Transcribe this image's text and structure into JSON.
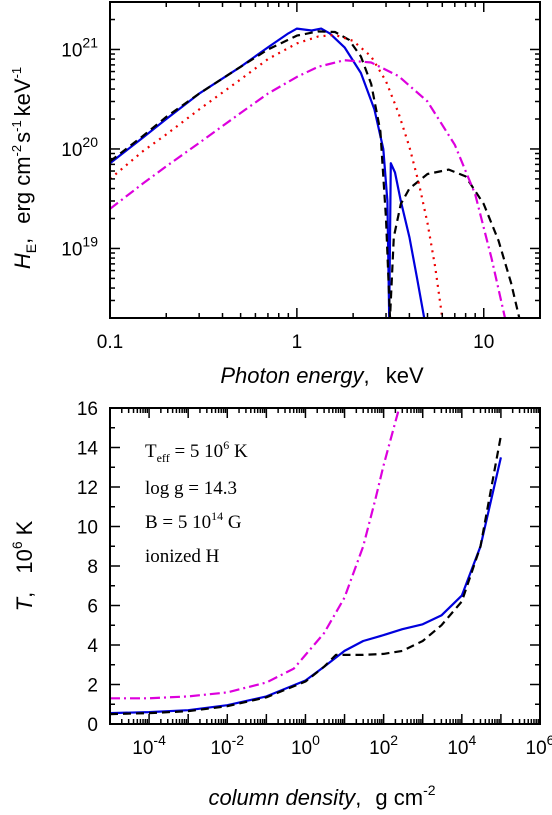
{
  "chart_data": [
    {
      "type": "line",
      "x_scale": "log",
      "y_scale": "log",
      "xlim": [
        0.1,
        20
      ],
      "ylim": [
        2e+18,
        3e+21
      ],
      "x_tick_values": [
        0.1,
        1,
        10
      ],
      "x_tick_labels": [
        "0.1",
        "1",
        "10"
      ],
      "y_tick_values": [
        1e+19,
        1e+20,
        1e+21
      ],
      "y_tick_labels": [
        {
          "base": "10",
          "exp": "19"
        },
        {
          "base": "10",
          "exp": "20"
        },
        {
          "base": "10",
          "exp": "21"
        }
      ],
      "xlabel": {
        "italic": "Photon energy",
        "unit": "keV"
      },
      "ylabel": {
        "italic": "H",
        "sub": "E",
        "unit": "erg cm",
        "exp1": "-2",
        "s": "s",
        "exp2": "-1",
        "kev": "keV",
        "exp3": "-1"
      },
      "series": [
        {
          "color": "#0000dd",
          "dash": "solid",
          "points": [
            [
              0.1,
              7.2e+19
            ],
            [
              0.15,
              1.3e+20
            ],
            [
              0.2,
              2e+20
            ],
            [
              0.3,
              3.6e+20
            ],
            [
              0.5,
              6.7e+20
            ],
            [
              0.7,
              1.05e+21
            ],
            [
              0.9,
              1.45e+21
            ],
            [
              1.0,
              1.62e+21
            ],
            [
              1.2,
              1.55e+21
            ],
            [
              1.35,
              1.62e+21
            ],
            [
              1.5,
              1.45e+21
            ],
            [
              1.8,
              1.05e+21
            ],
            [
              2.2,
              5.8e+20
            ],
            [
              2.6,
              2.5e+20
            ],
            [
              2.9,
              1e+20
            ],
            [
              3.05,
              3e+19
            ],
            [
              3.12,
              2e+18
            ],
            [
              3.18,
              7.2e+19
            ],
            [
              3.35,
              5.8e+19
            ],
            [
              3.6,
              3e+19
            ],
            [
              4.0,
              1.3e+19
            ],
            [
              4.4,
              5e+18
            ],
            [
              4.8,
              2e+18
            ]
          ]
        },
        {
          "color": "#000000",
          "dash": "dashed",
          "points": [
            [
              0.1,
              7.5e+19
            ],
            [
              0.15,
              1.35e+20
            ],
            [
              0.2,
              2.1e+20
            ],
            [
              0.3,
              3.6e+20
            ],
            [
              0.5,
              6.7e+20
            ],
            [
              0.7,
              1e+21
            ],
            [
              1.0,
              1.38e+21
            ],
            [
              1.3,
              1.52e+21
            ],
            [
              1.6,
              1.5e+21
            ],
            [
              1.9,
              1.25e+21
            ],
            [
              2.2,
              8.5e+20
            ],
            [
              2.5,
              4.5e+20
            ],
            [
              2.8,
              1.5e+20
            ],
            [
              3.0,
              2e+19
            ],
            [
              3.15,
              2e+18
            ],
            [
              3.3,
              1.3e+19
            ],
            [
              3.6,
              2.8e+19
            ],
            [
              4.0,
              4e+19
            ],
            [
              5.0,
              5.6e+19
            ],
            [
              6.5,
              6.2e+19
            ],
            [
              8.0,
              5.3e+19
            ],
            [
              10.0,
              2.8e+19
            ],
            [
              12.0,
              1.2e+19
            ],
            [
              14.0,
              4.5e+18
            ],
            [
              15.5,
              2e+18
            ]
          ]
        },
        {
          "color": "#ee0000",
          "dash": "dotted",
          "points": [
            [
              0.1,
              5e+19
            ],
            [
              0.15,
              9.5e+19
            ],
            [
              0.2,
              1.4e+20
            ],
            [
              0.3,
              2.5e+20
            ],
            [
              0.5,
              5e+20
            ],
            [
              0.7,
              8e+20
            ],
            [
              1.0,
              1.15e+21
            ],
            [
              1.3,
              1.35e+21
            ],
            [
              1.6,
              1.4e+21
            ],
            [
              2.0,
              1.22e+21
            ],
            [
              2.5,
              8.5e+20
            ],
            [
              3.0,
              4.8e+20
            ],
            [
              3.5,
              2.3e+20
            ],
            [
              4.0,
              1.05e+20
            ],
            [
              4.5,
              4.5e+19
            ],
            [
              5.0,
              1.8e+19
            ],
            [
              5.5,
              6.5e+18
            ],
            [
              6.0,
              2e+18
            ]
          ]
        },
        {
          "color": "#dd00dd",
          "dash": "dashdot",
          "points": [
            [
              0.1,
              2.5e+19
            ],
            [
              0.15,
              4.5e+19
            ],
            [
              0.2,
              6.7e+19
            ],
            [
              0.3,
              1.15e+20
            ],
            [
              0.5,
              2.3e+20
            ],
            [
              0.7,
              3.6e+20
            ],
            [
              1.0,
              5.3e+20
            ],
            [
              1.3,
              6.7e+20
            ],
            [
              1.8,
              7.8e+20
            ],
            [
              2.5,
              7.4e+20
            ],
            [
              3.5,
              5.4e+20
            ],
            [
              5.0,
              3e+20
            ],
            [
              7.0,
              1.1e+20
            ],
            [
              9.0,
              3.5e+19
            ],
            [
              11.0,
              8e+18
            ],
            [
              13.0,
              2e+18
            ]
          ]
        }
      ]
    },
    {
      "type": "line",
      "x_scale": "log",
      "y_scale": "linear",
      "xlim": [
        1e-05,
        1000000.0
      ],
      "ylim": [
        0,
        16
      ],
      "x_tick_values": [
        0.0001,
        0.01,
        1,
        100,
        10000.0,
        1000000.0
      ],
      "x_tick_labels": [
        {
          "base": "10",
          "exp": "-4"
        },
        {
          "base": "10",
          "exp": "-2"
        },
        {
          "base": "10",
          "exp": "0"
        },
        {
          "base": "10",
          "exp": "2"
        },
        {
          "base": "10",
          "exp": "4"
        },
        {
          "base": "10",
          "exp": "6"
        }
      ],
      "y_tick_values": [
        0,
        2,
        4,
        6,
        8,
        10,
        12,
        14,
        16
      ],
      "y_tick_labels": [
        "0",
        "2",
        "4",
        "6",
        "8",
        "10",
        "12",
        "14",
        "16"
      ],
      "xlabel": {
        "italic": "column density",
        "unit": "g cm",
        "exp": "-2"
      },
      "ylabel": {
        "italic": "T",
        "unit": "10",
        "exp": "6",
        "k": "K"
      },
      "annotations": {
        "teff": {
          "T": "T",
          "sub": "eff",
          "rest": " = 5 10",
          "exp": "6",
          "unit": " K"
        },
        "logg": "log g = 14.3",
        "b": {
          "text": "B = 5 10",
          "exp": "14",
          "unit": " G"
        },
        "comp": "ionized H"
      },
      "series": [
        {
          "color": "#0000dd",
          "dash": "solid",
          "points": [
            [
              1e-05,
              0.55
            ],
            [
              0.0001,
              0.6
            ],
            [
              0.001,
              0.7
            ],
            [
              0.01,
              0.95
            ],
            [
              0.1,
              1.4
            ],
            [
              1,
              2.2
            ],
            [
              3,
              2.9
            ],
            [
              10,
              3.7
            ],
            [
              30,
              4.2
            ],
            [
              100,
              4.5
            ],
            [
              300,
              4.8
            ],
            [
              1000,
              5.05
            ],
            [
              3000,
              5.5
            ],
            [
              10000,
              6.5
            ],
            [
              30000,
              9.0
            ],
            [
              100000,
              13.5
            ]
          ]
        },
        {
          "color": "#000000",
          "dash": "dashed",
          "points": [
            [
              1e-05,
              0.5
            ],
            [
              0.0001,
              0.55
            ],
            [
              0.001,
              0.65
            ],
            [
              0.01,
              0.9
            ],
            [
              0.1,
              1.35
            ],
            [
              1,
              2.15
            ],
            [
              3,
              2.9
            ],
            [
              6,
              3.5
            ],
            [
              30,
              3.5
            ],
            [
              100,
              3.55
            ],
            [
              300,
              3.7
            ],
            [
              1000,
              4.2
            ],
            [
              3000,
              5.0
            ],
            [
              10000,
              6.2
            ],
            [
              30000,
              9.0
            ],
            [
              100000,
              14.6
            ]
          ]
        },
        {
          "color": "#dd00dd",
          "dash": "dashdot",
          "points": [
            [
              1e-05,
              1.3
            ],
            [
              0.0001,
              1.3
            ],
            [
              0.001,
              1.4
            ],
            [
              0.01,
              1.6
            ],
            [
              0.1,
              2.1
            ],
            [
              0.5,
              2.8
            ],
            [
              1,
              3.5
            ],
            [
              3,
              4.6
            ],
            [
              10,
              6.4
            ],
            [
              30,
              9.0
            ],
            [
              60,
              11.3
            ],
            [
              100,
              13.1
            ],
            [
              200,
              15.3
            ],
            [
              250,
              16.0
            ]
          ]
        }
      ]
    }
  ]
}
